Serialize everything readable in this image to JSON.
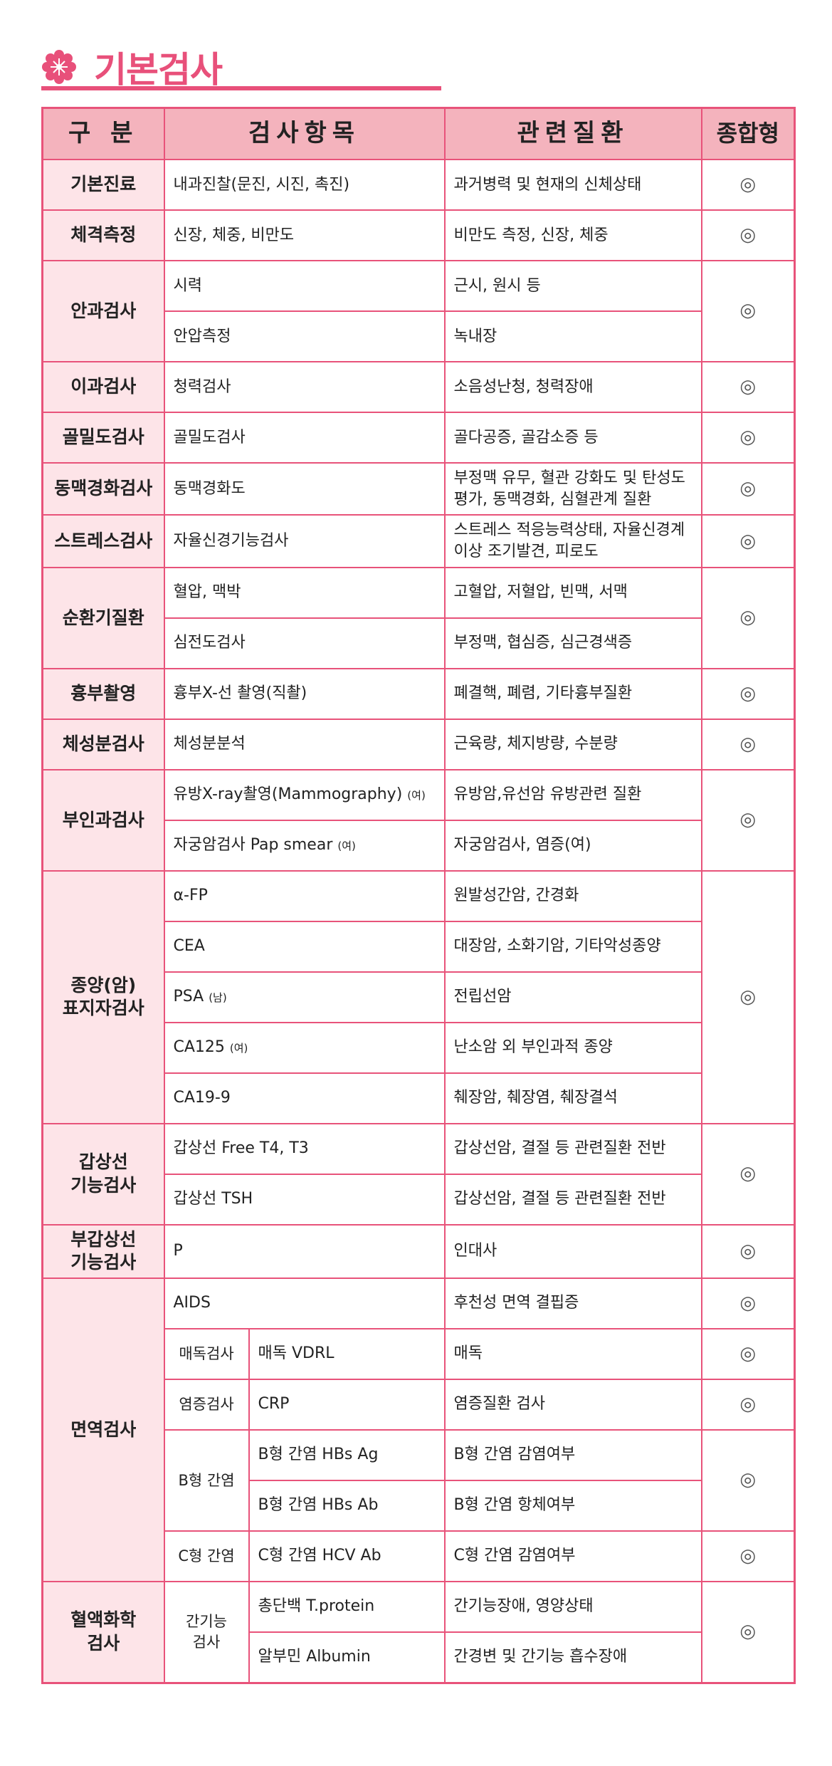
{
  "title": "기본검사",
  "colors": {
    "accent": "#e8507a",
    "header_bg": "#f4b3bd",
    "category_bg": "#fde4e8",
    "border": "#e8537a"
  },
  "header": {
    "category": "구 분",
    "test": "검사항목",
    "disease": "관련질환",
    "mark": "종합형"
  },
  "groups": [
    {
      "category": "기본진료",
      "subgroups": [
        {
          "sub": null,
          "mark": "◎",
          "items": [
            {
              "test": "내과진찰(문진, 시진, 촉진)",
              "disease": "과거병력 및 현재의 신체상태"
            }
          ]
        }
      ]
    },
    {
      "category": "체격측정",
      "subgroups": [
        {
          "sub": null,
          "mark": "◎",
          "items": [
            {
              "test": "신장, 체중, 비만도",
              "disease": "비만도 측정, 신장, 체중"
            }
          ]
        }
      ]
    },
    {
      "category": "안과검사",
      "subgroups": [
        {
          "sub": null,
          "mark": "◎",
          "items": [
            {
              "test": "시력",
              "disease": "근시, 원시 등"
            },
            {
              "test": "안압측정",
              "disease": "녹내장"
            }
          ]
        }
      ]
    },
    {
      "category": "이과검사",
      "subgroups": [
        {
          "sub": null,
          "mark": "◎",
          "items": [
            {
              "test": "청력검사",
              "disease": "소음성난청, 청력장애"
            }
          ]
        }
      ]
    },
    {
      "category": "골밀도검사",
      "subgroups": [
        {
          "sub": null,
          "mark": "◎",
          "items": [
            {
              "test": "골밀도검사",
              "disease": "골다공증, 골감소증 등"
            }
          ]
        }
      ]
    },
    {
      "category": "동맥경화검사",
      "subgroups": [
        {
          "sub": null,
          "mark": "◎",
          "items": [
            {
              "test": "동맥경화도",
              "disease": "부정맥 유무, 혈관 강화도 및 탄성도 평가, 동맥경화, 심혈관계 질환"
            }
          ]
        }
      ]
    },
    {
      "category": "스트레스검사",
      "subgroups": [
        {
          "sub": null,
          "mark": "◎",
          "items": [
            {
              "test": "자율신경기능검사",
              "disease": "스트레스 적응능력상태, 자율신경계이상 조기발견, 피로도"
            }
          ]
        }
      ]
    },
    {
      "category": "순환기질환",
      "subgroups": [
        {
          "sub": null,
          "mark": "◎",
          "items": [
            {
              "test": "혈압, 맥박",
              "disease": "고혈압, 저혈압, 빈맥, 서맥"
            },
            {
              "test": "심전도검사",
              "disease": "부정맥, 협심증, 심근경색증"
            }
          ]
        }
      ]
    },
    {
      "category": "흉부촬영",
      "subgroups": [
        {
          "sub": null,
          "mark": "◎",
          "items": [
            {
              "test": "흉부X-선 촬영(직촬)",
              "disease": "폐결핵, 폐렴, 기타흉부질환"
            }
          ]
        }
      ]
    },
    {
      "category": "체성분검사",
      "subgroups": [
        {
          "sub": null,
          "mark": "◎",
          "items": [
            {
              "test": "체성분분석",
              "disease": "근육량, 체지방량, 수분량"
            }
          ]
        }
      ]
    },
    {
      "category": "부인과검사",
      "subgroups": [
        {
          "sub": null,
          "mark": "◎",
          "items": [
            {
              "test": "유방X-ray촬영(Mammography)",
              "note": "(여)",
              "disease": "유방암,유선암 유방관련 질환"
            },
            {
              "test": "자궁암검사 Pap smear",
              "note": "(여)",
              "disease": "자궁암검사, 염증(여)"
            }
          ]
        }
      ]
    },
    {
      "category": "종양(암)\n표지자검사",
      "subgroups": [
        {
          "sub": null,
          "mark": "◎",
          "items": [
            {
              "test": "α-FP",
              "disease": "원발성간암, 간경화"
            },
            {
              "test": "CEA",
              "disease": "대장암, 소화기암, 기타악성종양"
            },
            {
              "test": "PSA",
              "note": "(남)",
              "disease": "전립선암"
            },
            {
              "test": "CA125",
              "note": "(여)",
              "disease": "난소암 외 부인과적 종양"
            },
            {
              "test": "CA19-9",
              "disease": "췌장암, 췌장염, 췌장결석"
            }
          ]
        }
      ]
    },
    {
      "category": "갑상선\n기능검사",
      "subgroups": [
        {
          "sub": null,
          "mark": "◎",
          "items": [
            {
              "test": "갑상선 Free T4, T3",
              "disease": "갑상선암, 결절 등 관련질환 전반"
            },
            {
              "test": "갑상선 TSH",
              "disease": "갑상선암, 결절 등 관련질환 전반"
            }
          ]
        }
      ]
    },
    {
      "category": "부갑상선\n기능검사",
      "subgroups": [
        {
          "sub": null,
          "mark": "◎",
          "items": [
            {
              "test": "P",
              "disease": "인대사"
            }
          ]
        }
      ]
    },
    {
      "category": "면역검사",
      "subgroups": [
        {
          "sub": null,
          "mark": "◎",
          "items": [
            {
              "test": "AIDS",
              "disease": "후천성 면역 결핍증"
            }
          ]
        },
        {
          "sub": "매독검사",
          "mark": "◎",
          "items": [
            {
              "test": "매독 VDRL",
              "disease": "매독"
            }
          ]
        },
        {
          "sub": "염증검사",
          "mark": "◎",
          "items": [
            {
              "test": "CRP",
              "disease": "염증질환 검사"
            }
          ]
        },
        {
          "sub": "B형 간염",
          "mark": "◎",
          "items": [
            {
              "test": "B형 간염 HBs Ag",
              "disease": "B형 간염 감염여부"
            },
            {
              "test": "B형 간염 HBs Ab",
              "disease": "B형 간염 항체여부"
            }
          ]
        },
        {
          "sub": "C형 간염",
          "mark": "◎",
          "items": [
            {
              "test": "C형 간염 HCV Ab",
              "disease": "C형 간염 감염여부"
            }
          ]
        }
      ]
    },
    {
      "category": "혈액화학\n검사",
      "subgroups": [
        {
          "sub": "간기능\n검사",
          "mark": "◎",
          "items": [
            {
              "test": "총단백 T.protein",
              "disease": "간기능장애, 영양상태"
            },
            {
              "test": "알부민 Albumin",
              "disease": "간경변 및 간기능 흡수장애"
            }
          ]
        }
      ]
    }
  ]
}
